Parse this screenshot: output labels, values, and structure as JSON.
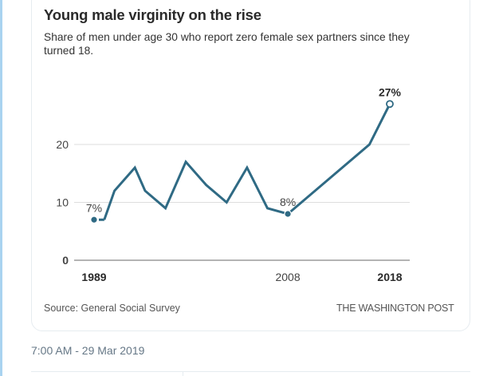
{
  "tweet": {
    "timestamp": "7:00 AM - 29 Mar 2019"
  },
  "card": {
    "title": "Young male virginity on the rise",
    "subtitle": "Share of men under age 30 who report zero female sex partners since they turned 18.",
    "source": "Source: General Social Survey",
    "credit": "THE WASHINGTON POST"
  },
  "colors": {
    "line": "#2f6a84",
    "grid": "#dddddd",
    "baseline": "#888888",
    "text": "#333333"
  },
  "chart_data": {
    "type": "line",
    "title": "Young male virginity on the rise",
    "subtitle": "Share of men under age 30 who report zero female sex partners since they turned 18.",
    "xlabel": "",
    "ylabel": "",
    "x": [
      1989,
      1990,
      1991,
      1993,
      1994,
      1996,
      1998,
      2000,
      2002,
      2004,
      2006,
      2008,
      2016,
      2018
    ],
    "series": [
      {
        "name": "Share of men under 30 with zero female sex partners since 18 (%)",
        "values": [
          7,
          7,
          12,
          16,
          12,
          9,
          17,
          13,
          10,
          16,
          9,
          8,
          20,
          27
        ]
      }
    ],
    "xlim": [
      1989,
      2018
    ],
    "ylim": [
      0,
      27
    ],
    "yticks": [
      0,
      10,
      20
    ],
    "xtick_labels": [
      {
        "year": 1989,
        "label": "1989",
        "bold": true
      },
      {
        "year": 2008,
        "label": "2008",
        "bold": false
      },
      {
        "year": 2018,
        "label": "2018",
        "bold": true
      }
    ],
    "annotations": [
      {
        "year": 1989,
        "value": 7,
        "label": "7%",
        "marker": "filled"
      },
      {
        "year": 2008,
        "value": 8,
        "label": "8%",
        "marker": "filled"
      },
      {
        "year": 2018,
        "value": 27,
        "label": "27%",
        "marker": "open",
        "bold": true
      }
    ],
    "grid": true,
    "legend": "none",
    "source": "Source: General Social Survey"
  }
}
